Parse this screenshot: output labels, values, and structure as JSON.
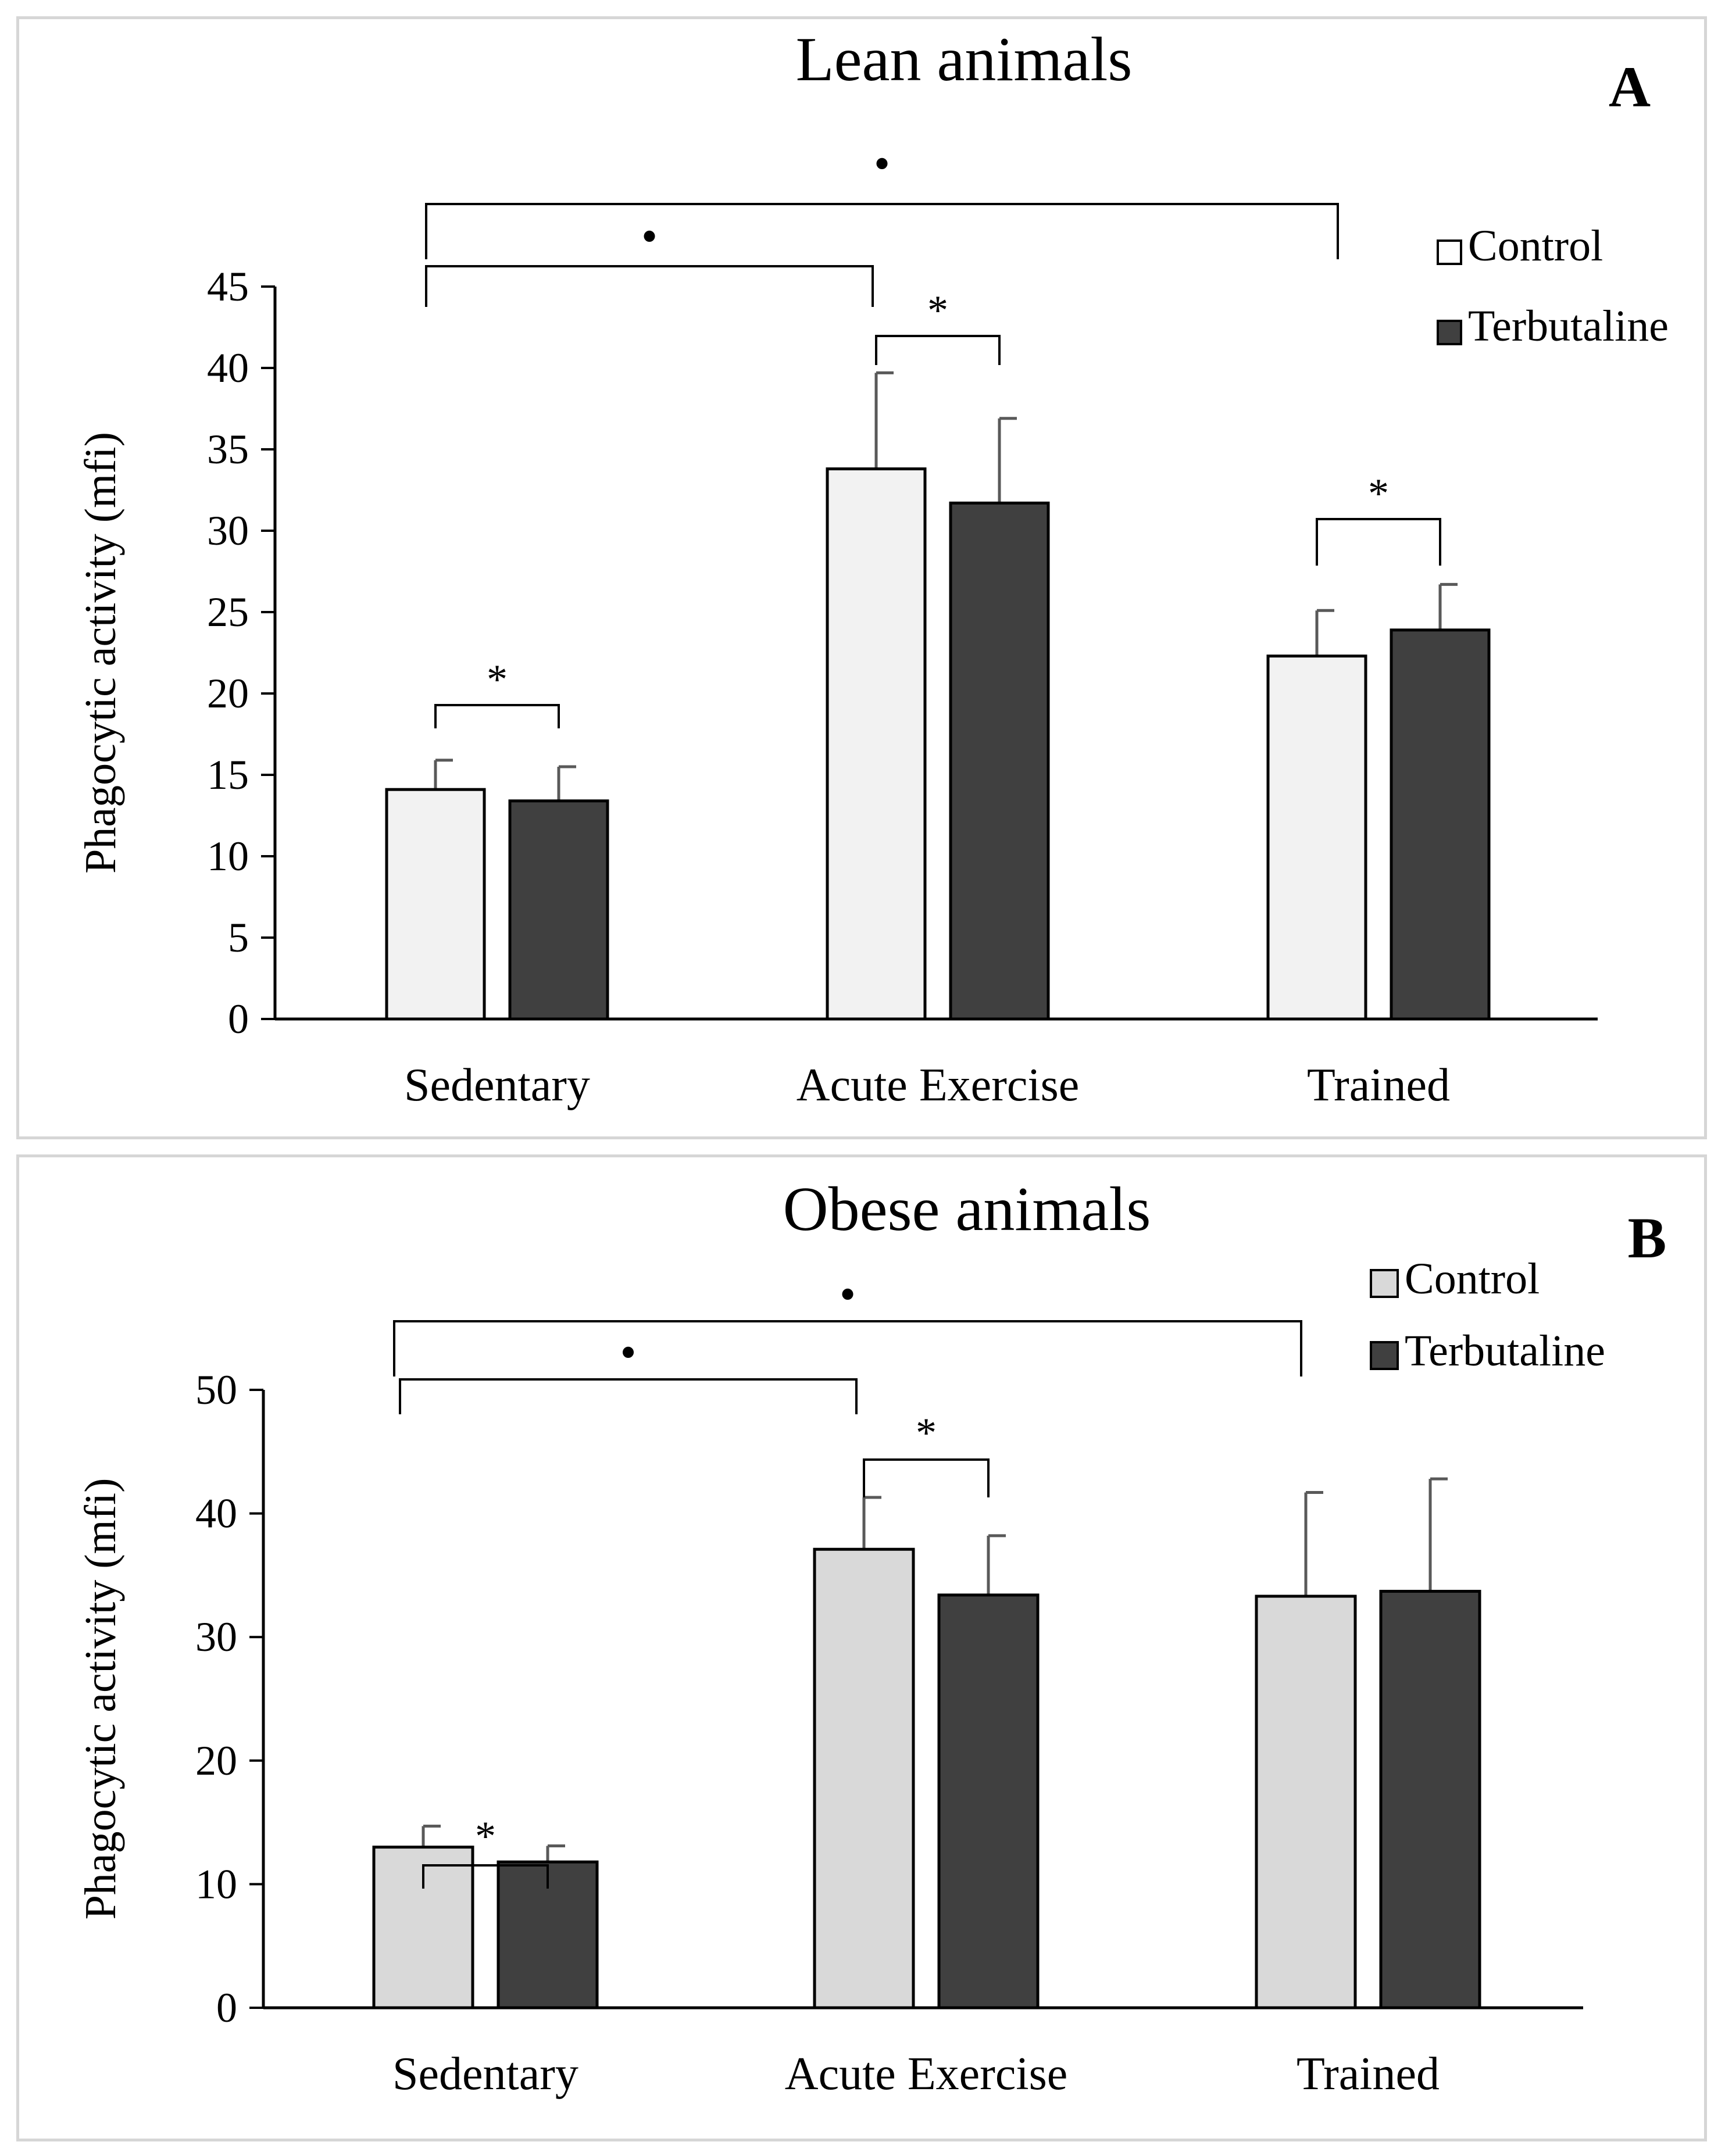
{
  "colors": {
    "control_bar_a": "#f2f2f2",
    "control_bar_b": "#d9d9d9",
    "terbutaline_bar": "#404040",
    "axis": "#000000",
    "error_bar": "#595959"
  },
  "chart_data": [
    {
      "type": "bar",
      "panel_label": "A",
      "title": "Lean animals",
      "xlabel": "",
      "ylabel": "Phagocytic activity (mfi)",
      "ylim": [
        0,
        45
      ],
      "yticks": [
        0,
        5,
        10,
        15,
        20,
        25,
        30,
        35,
        40,
        45
      ],
      "categories": [
        "Sedentary",
        "Acute Exercise",
        "Trained"
      ],
      "series": [
        {
          "name": "Control",
          "values": [
            14.1,
            33.8,
            22.3
          ],
          "errors": [
            1.8,
            5.9,
            2.8
          ]
        },
        {
          "name": "Terbutaline",
          "values": [
            13.4,
            31.7,
            23.9
          ],
          "errors": [
            2.1,
            5.2,
            2.8
          ]
        }
      ],
      "legend": [
        "Control",
        "Terbutaline"
      ],
      "legend_position": "top-right",
      "annotations": [
        {
          "type": "within-group",
          "group": "Sedentary",
          "symbol": "*"
        },
        {
          "type": "within-group",
          "group": "Acute Exercise",
          "symbol": "*"
        },
        {
          "type": "within-group",
          "group": "Trained",
          "symbol": "*"
        },
        {
          "type": "between-groups",
          "from": "Sedentary",
          "to": "Acute Exercise",
          "symbol": "•"
        },
        {
          "type": "between-groups",
          "from": "Sedentary",
          "to": "Trained",
          "symbol": "•"
        }
      ]
    },
    {
      "type": "bar",
      "panel_label": "B",
      "title": "Obese animals",
      "xlabel": "",
      "ylabel": "Phagocytic activity (mfi)",
      "ylim": [
        0,
        50
      ],
      "yticks": [
        0,
        10,
        20,
        30,
        40,
        50
      ],
      "categories": [
        "Sedentary",
        "Acute Exercise",
        "Trained"
      ],
      "series": [
        {
          "name": "Control",
          "values": [
            13.0,
            37.1,
            33.3
          ],
          "errors": [
            1.7,
            4.2,
            8.4
          ]
        },
        {
          "name": "Terbutaline",
          "values": [
            11.8,
            33.4,
            33.7
          ],
          "errors": [
            1.3,
            4.8,
            9.1
          ]
        }
      ],
      "legend": [
        "Control",
        "Terbutaline"
      ],
      "legend_position": "top-right",
      "annotations": [
        {
          "type": "within-group",
          "group": "Sedentary",
          "symbol": "*"
        },
        {
          "type": "within-group",
          "group": "Acute Exercise",
          "symbol": "*"
        },
        {
          "type": "between-groups",
          "from": "Sedentary",
          "to": "Acute Exercise",
          "symbol": "•"
        },
        {
          "type": "between-groups",
          "from": "Sedentary",
          "to": "Trained",
          "symbol": "•"
        }
      ]
    }
  ]
}
